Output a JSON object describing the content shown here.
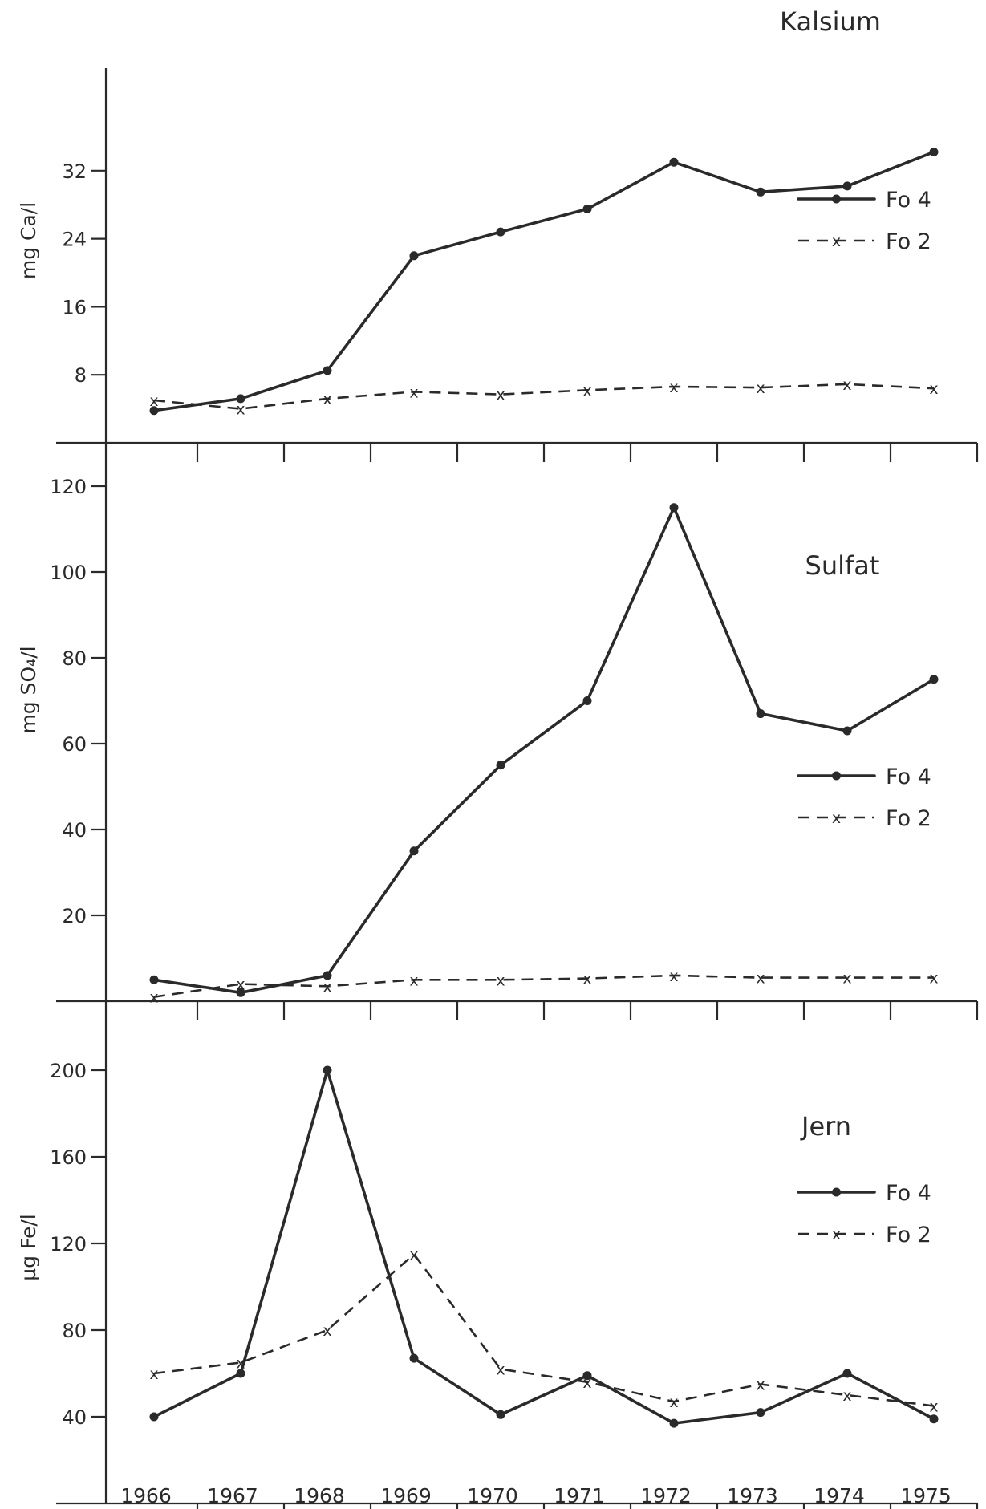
{
  "chart_data": [
    {
      "type": "line",
      "title": "Kalsium",
      "ylabel": "mg Ca/l",
      "categories": [
        "1966",
        "1967",
        "1968",
        "1969",
        "1970",
        "1971",
        "1972",
        "1973",
        "1974",
        "1975"
      ],
      "y_ticks": [
        "8",
        "16",
        "24",
        "32"
      ],
      "ylim": [
        0,
        40
      ],
      "series": [
        {
          "name": "Fo 4",
          "marker": "•",
          "values": [
            3.8,
            5.2,
            8.5,
            22,
            24.8,
            27.5,
            33,
            29.5,
            30.2,
            34.2
          ]
        },
        {
          "name": "Fo 2",
          "marker": "x",
          "values": [
            5,
            4,
            5.2,
            6,
            5.7,
            6.2,
            6.6,
            6.5,
            6.9,
            6.4
          ]
        }
      ]
    },
    {
      "type": "line",
      "title": "Sulfat",
      "ylabel": "mg SO₄/l",
      "categories": [
        "1966",
        "1967",
        "1968",
        "1969",
        "1970",
        "1971",
        "1972",
        "1973",
        "1974",
        "1975"
      ],
      "y_ticks": [
        "20",
        "40",
        "60",
        "80",
        "100",
        "120"
      ],
      "ylim": [
        0,
        120
      ],
      "series": [
        {
          "name": "Fo 4",
          "marker": "•",
          "values": [
            5,
            2,
            6,
            35,
            55,
            70,
            115,
            67,
            63,
            75
          ]
        },
        {
          "name": "Fo 2",
          "marker": "x",
          "values": [
            1,
            4,
            3.5,
            5,
            5,
            5.3,
            6,
            5.5,
            5.5,
            5.5
          ]
        }
      ]
    },
    {
      "type": "line",
      "title": "Jern",
      "ylabel": "µg Fe/l",
      "categories": [
        "1966",
        "1967",
        "1968",
        "1969",
        "1970",
        "1971",
        "1972",
        "1973",
        "1974",
        "1975"
      ],
      "y_ticks": [
        "40",
        "80",
        "120",
        "160",
        "200"
      ],
      "ylim": [
        0,
        220
      ],
      "series": [
        {
          "name": "Fo 4",
          "marker": "•",
          "values": [
            40,
            60,
            200,
            67,
            41,
            59,
            37,
            42,
            60,
            39
          ]
        },
        {
          "name": "Fo 2",
          "marker": "x",
          "values": [
            60,
            65,
            80,
            115,
            62,
            56,
            47,
            55,
            50,
            45
          ]
        }
      ]
    }
  ]
}
